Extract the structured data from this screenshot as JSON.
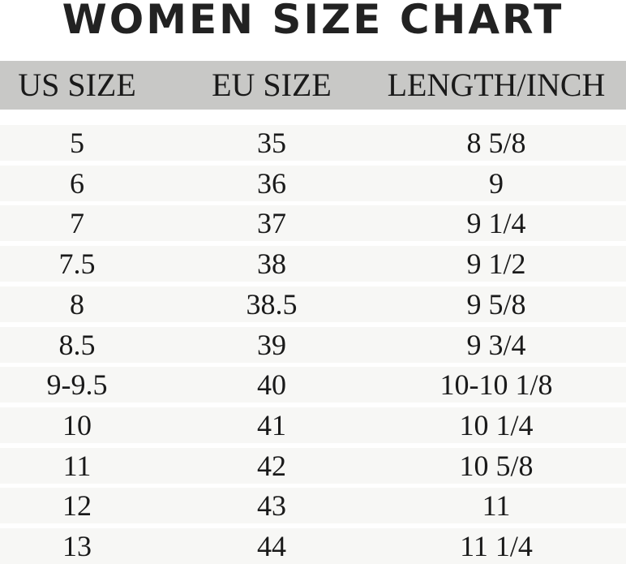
{
  "title": "WOMEN SIZE CHART",
  "chart_data": {
    "type": "table",
    "title": "WOMEN SIZE CHART",
    "columns": [
      "US SIZE",
      "EU SIZE",
      "LENGTH/INCH"
    ],
    "rows": [
      [
        "5",
        "35",
        "8 5/8"
      ],
      [
        "6",
        "36",
        "9"
      ],
      [
        "7",
        "37",
        "9 1/4"
      ],
      [
        "7.5",
        "38",
        "9 1/2"
      ],
      [
        "8",
        "38.5",
        "9 5/8"
      ],
      [
        "8.5",
        "39",
        "9 3/4"
      ],
      [
        "9-9.5",
        "40",
        "10-10 1/8"
      ],
      [
        "10",
        "41",
        "10 1/4"
      ],
      [
        "11",
        "42",
        "10 5/8"
      ],
      [
        "12",
        "43",
        "11"
      ],
      [
        "13",
        "44",
        "11 1/4"
      ]
    ]
  },
  "colors": {
    "header_bg": "#c8c8c6",
    "row_bg": "#f7f7f5",
    "text": "#1a1a1a"
  }
}
